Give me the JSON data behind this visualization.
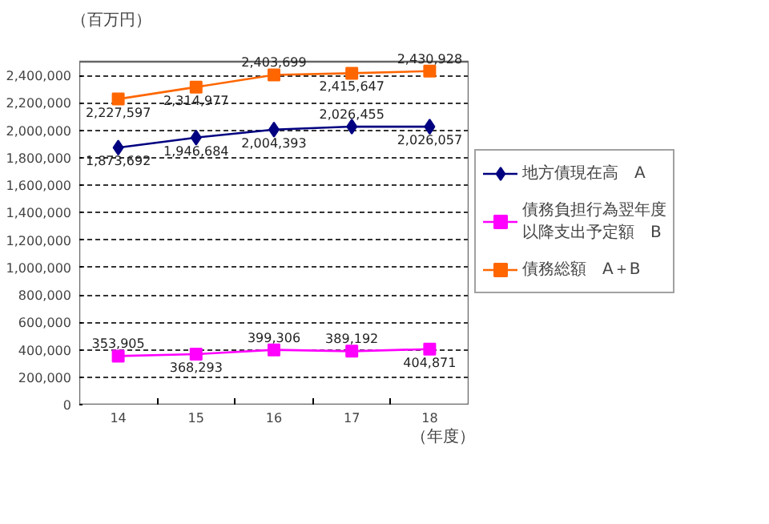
{
  "chart_data": {
    "type": "line",
    "ylabel": "（百万円）",
    "xlabel": "（年度）",
    "categories": [
      "14",
      "15",
      "16",
      "17",
      "18"
    ],
    "ylim": [
      0,
      2500000
    ],
    "yticks": [
      0,
      {
        "value": 200000,
        "label": "200,000"
      },
      {
        "value": 400000,
        "label": "400,000"
      },
      {
        "value": 600000,
        "label": "600,000"
      },
      {
        "value": 800000,
        "label": "800,000"
      },
      {
        "value": 1000000,
        "label": "1,000,000"
      },
      {
        "value": 1200000,
        "label": "1,200,000"
      },
      {
        "value": 1400000,
        "label": "1,400,000"
      },
      {
        "value": 1600000,
        "label": "1,600,000"
      },
      {
        "value": 1800000,
        "label": "1,800,000"
      },
      {
        "value": 2000000,
        "label": "2,000,000"
      },
      {
        "value": 2200000,
        "label": "2,200,000"
      },
      {
        "value": 2400000,
        "label": "2,400,000"
      }
    ],
    "grid": "y",
    "legend": "right",
    "series": [
      {
        "name": "地方債現在高　A",
        "color": "#000080",
        "marker": "diamond",
        "values": [
          1873692,
          1946684,
          2004393,
          2026455,
          2026057
        ],
        "value_labels": [
          "1,873,692",
          "1,946,684",
          "2,004,393",
          "2,026,455",
          "2,026,057"
        ]
      },
      {
        "name": "債務負担行為翌年度以降支出予定額　B",
        "color": "#ff00ff",
        "marker": "square",
        "values": [
          353905,
          368293,
          399306,
          389192,
          404871
        ],
        "value_labels": [
          "353,905",
          "368,293",
          "399,306",
          "389,192",
          "404,871"
        ]
      },
      {
        "name": "債務総額　A＋B",
        "color": "#ff6600",
        "marker": "square",
        "values": [
          2227597,
          2314977,
          2403699,
          2415647,
          2430928
        ],
        "value_labels": [
          "2,227,597",
          "2,314,977",
          "2,403,699",
          "2,415,647",
          "2,430,928"
        ]
      }
    ]
  }
}
